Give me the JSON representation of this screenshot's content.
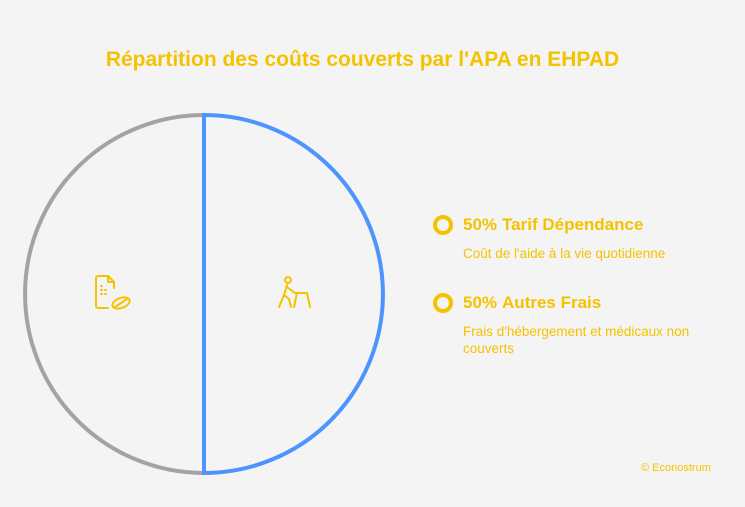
{
  "chart_data": {
    "type": "pie",
    "title": "Répartition des coûts couverts par l'APA en EHPAD",
    "categories": [
      "Tarif Dépendance",
      "Autres Frais"
    ],
    "values": [
      50,
      50
    ],
    "value_labels": [
      "50%",
      "50%"
    ],
    "descriptions": [
      "Coût de l'aide à la vie quotidienne",
      "Frais d'hébergement et médicaux non couverts"
    ],
    "colors": [
      "#4d94ff",
      "#a3a3a3"
    ],
    "legend_color": "#f5c200",
    "source": "© Econostrum"
  }
}
